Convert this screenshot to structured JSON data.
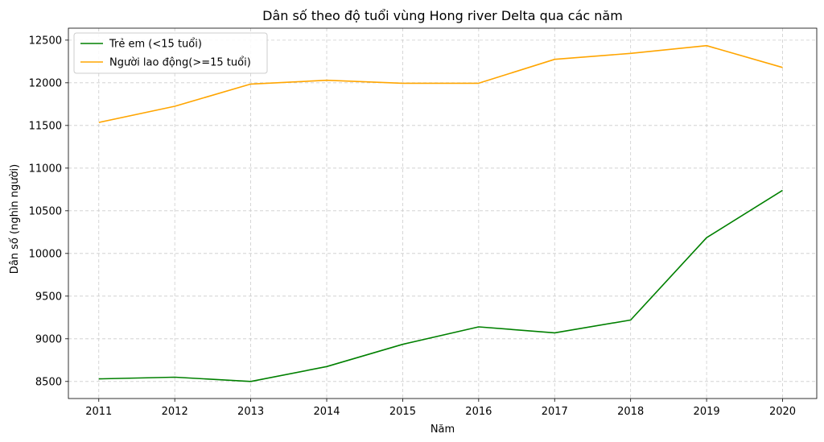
{
  "chart_data": {
    "type": "line",
    "title": "Dân số theo độ tuổi vùng Hong river Delta qua các năm",
    "xlabel": "Năm",
    "ylabel": "Dân số (nghìn người)",
    "x": [
      2011,
      2012,
      2013,
      2014,
      2015,
      2016,
      2017,
      2018,
      2019,
      2020
    ],
    "x_tick_labels": [
      "2011",
      "2012",
      "2013",
      "2014",
      "2015",
      "2016",
      "2017",
      "2018",
      "2019",
      "2020"
    ],
    "y_ticks": [
      8500,
      9000,
      9500,
      10000,
      10500,
      11000,
      11500,
      12000,
      12500
    ],
    "y_tick_labels": [
      "8500",
      "9000",
      "9500",
      "10000",
      "10500",
      "11000",
      "11500",
      "12000",
      "12500"
    ],
    "xlim": [
      2010.6,
      2020.45
    ],
    "ylim": [
      8300,
      12640
    ],
    "grid": true,
    "legend_position": "top-left",
    "series": [
      {
        "name": "Trẻ em (<15 tuổi)",
        "color": "#008000",
        "values": [
          8530,
          8550,
          8500,
          8675,
          8935,
          9140,
          9070,
          9220,
          10185,
          10740
        ]
      },
      {
        "name": "Người lao động(>=15 tuổi)",
        "color": "#FFA500",
        "values": [
          11535,
          11725,
          11985,
          12030,
          11995,
          11995,
          12275,
          12345,
          12435,
          12180
        ]
      }
    ]
  }
}
